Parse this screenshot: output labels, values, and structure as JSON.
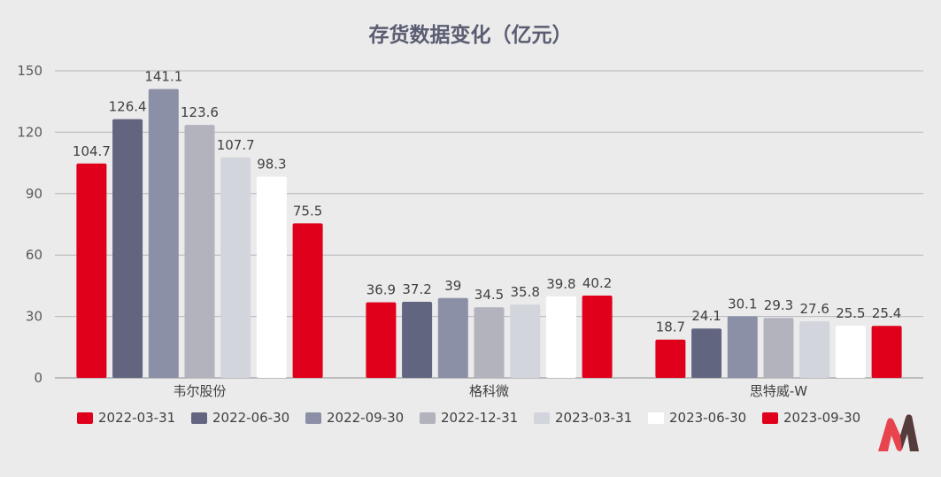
{
  "chart_data": {
    "type": "bar",
    "title": "存货数据变化（亿元）",
    "categories": [
      "韦尔股份",
      "格科微",
      "思特威-W"
    ],
    "series": [
      {
        "name": "2022-03-31",
        "color": "#e0001b",
        "values": [
          104.7,
          36.9,
          18.7
        ]
      },
      {
        "name": "2022-06-30",
        "color": "#626580",
        "values": [
          126.4,
          37.2,
          24.1
        ]
      },
      {
        "name": "2022-09-30",
        "color": "#8c90a6",
        "values": [
          141.1,
          39,
          30.1
        ]
      },
      {
        "name": "2022-12-31",
        "color": "#b2b3bd",
        "values": [
          123.6,
          34.5,
          29.3
        ]
      },
      {
        "name": "2023-03-31",
        "color": "#d3d5dc",
        "values": [
          107.7,
          35.8,
          27.6
        ]
      },
      {
        "name": "2023-06-30",
        "color": "#ffffff",
        "values": [
          98.3,
          39.8,
          25.5
        ]
      },
      {
        "name": "2023-09-30",
        "color": "#e0001b",
        "values": [
          75.5,
          40.2,
          25.4
        ]
      }
    ],
    "yticks": [
      "0",
      "30",
      "60",
      "90",
      "120",
      "150"
    ],
    "ylim": [
      0,
      150
    ],
    "grid": true,
    "legend_position": "bottom"
  },
  "logo_icon": "brand-m-logo-icon"
}
